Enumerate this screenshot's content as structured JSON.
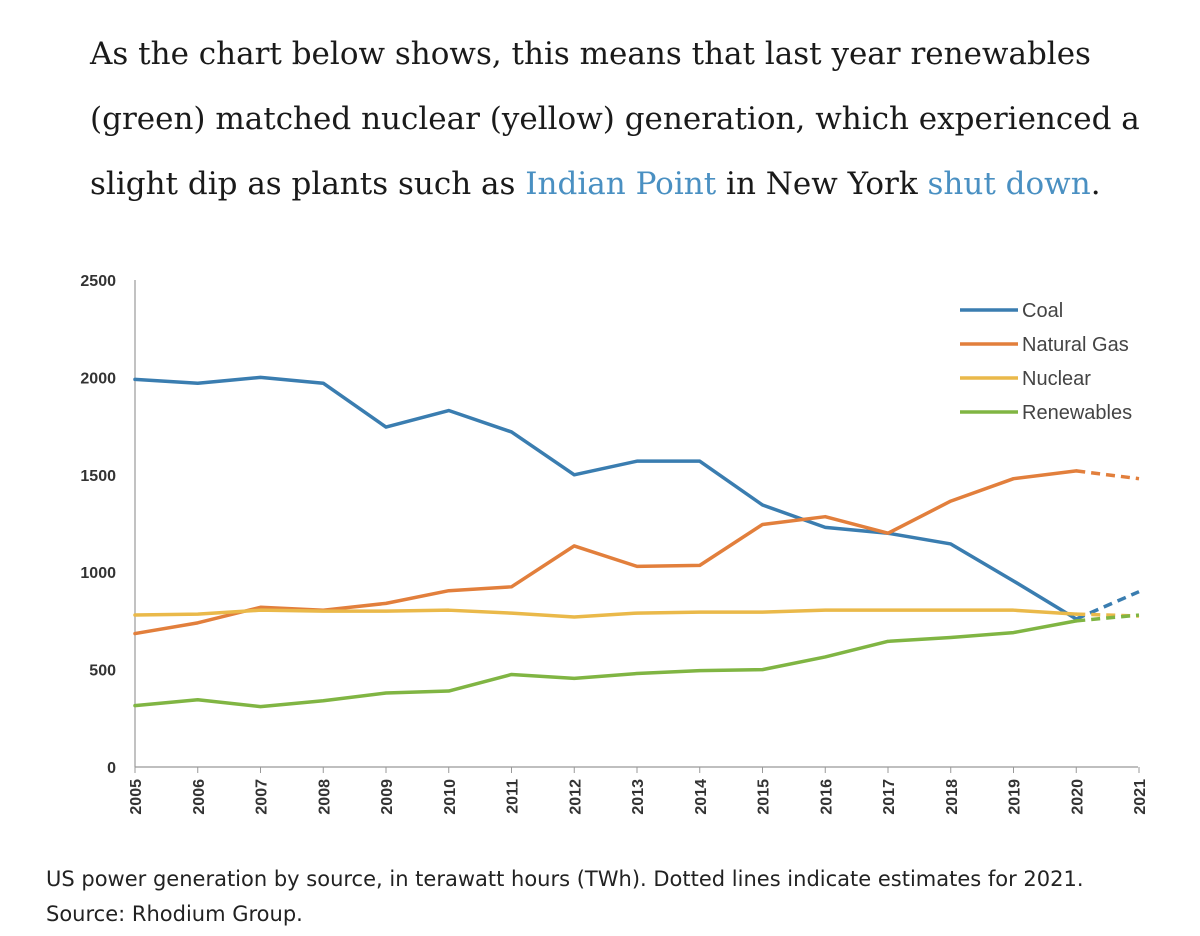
{
  "intro": {
    "text_1": "As the chart below shows, this means that last year renewables (green) matched nuclear (yellow) generation, which experienced a slight dip as plants such as ",
    "link_1": "Indian Point",
    "text_2": " in New York ",
    "link_2": "shut down",
    "text_3": "."
  },
  "caption": {
    "line_1": "US power generation by source, in terawatt hours (TWh). Dotted lines indicate estimates for 2021.",
    "line_2": "Source: Rhodium Group."
  },
  "chart_data": {
    "type": "line",
    "x": [
      "2005",
      "2006",
      "2007",
      "2008",
      "2009",
      "2010",
      "2011",
      "2012",
      "2013",
      "2014",
      "2015",
      "2016",
      "2017",
      "2018",
      "2019",
      "2020",
      "2021"
    ],
    "ylim": [
      0,
      2500
    ],
    "yticks": [
      0,
      500,
      1000,
      1500,
      2000,
      2500
    ],
    "ytick_labels": [
      "0",
      "500",
      "1000",
      "1500",
      "2000",
      "2500"
    ],
    "estimate_from": "2020",
    "legend_position": "top-right",
    "grid": false,
    "series": [
      {
        "name": "Coal",
        "color": "#3a7db0",
        "values": [
          1990,
          1970,
          2000,
          1970,
          1745,
          1830,
          1720,
          1500,
          1570,
          1570,
          1345,
          1230,
          1200,
          1145,
          955,
          760,
          900
        ]
      },
      {
        "name": "Natural Gas",
        "color": "#e27f3c",
        "values": [
          685,
          740,
          820,
          805,
          840,
          905,
          925,
          1135,
          1030,
          1035,
          1245,
          1285,
          1200,
          1365,
          1480,
          1520,
          1480
        ]
      },
      {
        "name": "Nuclear",
        "color": "#eab94a",
        "values": [
          780,
          785,
          805,
          800,
          800,
          805,
          790,
          770,
          790,
          795,
          795,
          805,
          805,
          805,
          805,
          785,
          775
        ]
      },
      {
        "name": "Renewables",
        "color": "#80b543",
        "values": [
          315,
          345,
          310,
          340,
          380,
          390,
          475,
          455,
          480,
          495,
          500,
          565,
          645,
          665,
          690,
          750,
          780
        ]
      }
    ]
  }
}
